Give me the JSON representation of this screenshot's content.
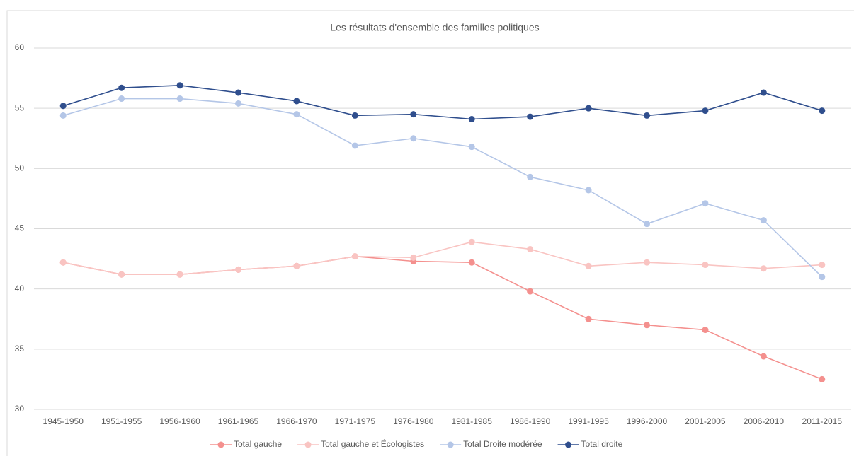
{
  "chart_data": {
    "type": "line",
    "title": "Les résultats d'ensemble des familles politiques",
    "categories": [
      "1945-1950",
      "1951-1955",
      "1956-1960",
      "1961-1965",
      "1966-1970",
      "1971-1975",
      "1976-1980",
      "1981-1985",
      "1986-1990",
      "1991-1995",
      "1996-2000",
      "2001-2005",
      "2006-2010",
      "2011-2015"
    ],
    "series": [
      {
        "name": "Total gauche",
        "color": "#f4908e",
        "values": [
          42.2,
          41.2,
          41.2,
          41.6,
          41.9,
          42.7,
          42.3,
          42.2,
          39.8,
          37.5,
          37.0,
          36.6,
          34.4,
          32.5
        ]
      },
      {
        "name": "Total gauche et Écologistes",
        "color": "#f9c4c2",
        "values": [
          42.2,
          41.2,
          41.2,
          41.6,
          41.9,
          42.7,
          42.6,
          43.9,
          43.3,
          41.9,
          42.2,
          42.0,
          41.7,
          42.0
        ]
      },
      {
        "name": "Total Droite modérée",
        "color": "#b4c6e7",
        "values": [
          54.4,
          55.8,
          55.8,
          55.4,
          54.5,
          51.9,
          52.5,
          51.8,
          49.3,
          48.2,
          45.4,
          47.1,
          45.7,
          41.0
        ]
      },
      {
        "name": "Total droite",
        "color": "#2f4e8d",
        "values": [
          55.2,
          56.7,
          56.9,
          56.3,
          55.6,
          54.4,
          54.5,
          54.1,
          54.3,
          55.0,
          54.4,
          54.8,
          56.3,
          54.8
        ]
      }
    ],
    "ylim": [
      30,
      60
    ],
    "yticks": [
      30,
      35,
      40,
      45,
      50,
      55,
      60
    ],
    "grid": true,
    "legend": "bottom"
  }
}
